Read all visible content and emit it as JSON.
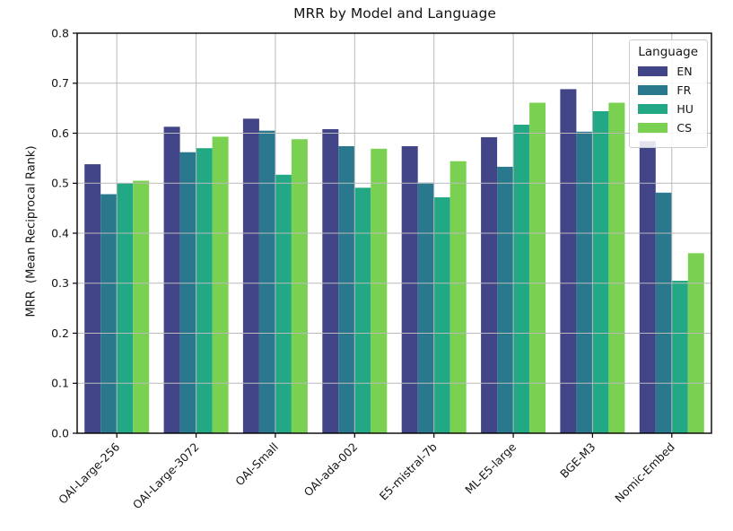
{
  "chart_data": {
    "type": "bar",
    "title": "MRR by Model and Language",
    "xlabel": "",
    "ylabel": "MRR  (Mean Reciprocal Rank)",
    "categories": [
      "OAI-Large-256",
      "OAI-Large-3072",
      "OAI-Small",
      "OAI-ada-002",
      "E5-mistral-7b",
      "ML-E5-large",
      "BGE-M3",
      "Nomic-Embed"
    ],
    "series": [
      {
        "name": "EN",
        "color": "#414487",
        "values": [
          0.538,
          0.613,
          0.629,
          0.608,
          0.574,
          0.592,
          0.688,
          0.584
        ]
      },
      {
        "name": "FR",
        "color": "#2a788e",
        "values": [
          0.478,
          0.562,
          0.605,
          0.574,
          0.501,
          0.533,
          0.603,
          0.481
        ]
      },
      {
        "name": "HU",
        "color": "#22a884",
        "values": [
          0.5,
          0.57,
          0.517,
          0.491,
          0.472,
          0.617,
          0.644,
          0.305
        ]
      },
      {
        "name": "CS",
        "color": "#7ad151",
        "values": [
          0.505,
          0.593,
          0.588,
          0.569,
          0.544,
          0.661,
          0.661,
          0.36
        ]
      }
    ],
    "ylim": [
      0,
      0.8
    ],
    "yticks": [
      0,
      0.1,
      0.2,
      0.3,
      0.4,
      0.5,
      0.6,
      0.7,
      0.8
    ],
    "ytick_decimals": 1,
    "grid": true,
    "grid_color": "#b9b9b9",
    "axis_color": "#000000",
    "legend_title": "Language",
    "legend_position": "upper right",
    "xtick_rotation_deg": 45
  }
}
